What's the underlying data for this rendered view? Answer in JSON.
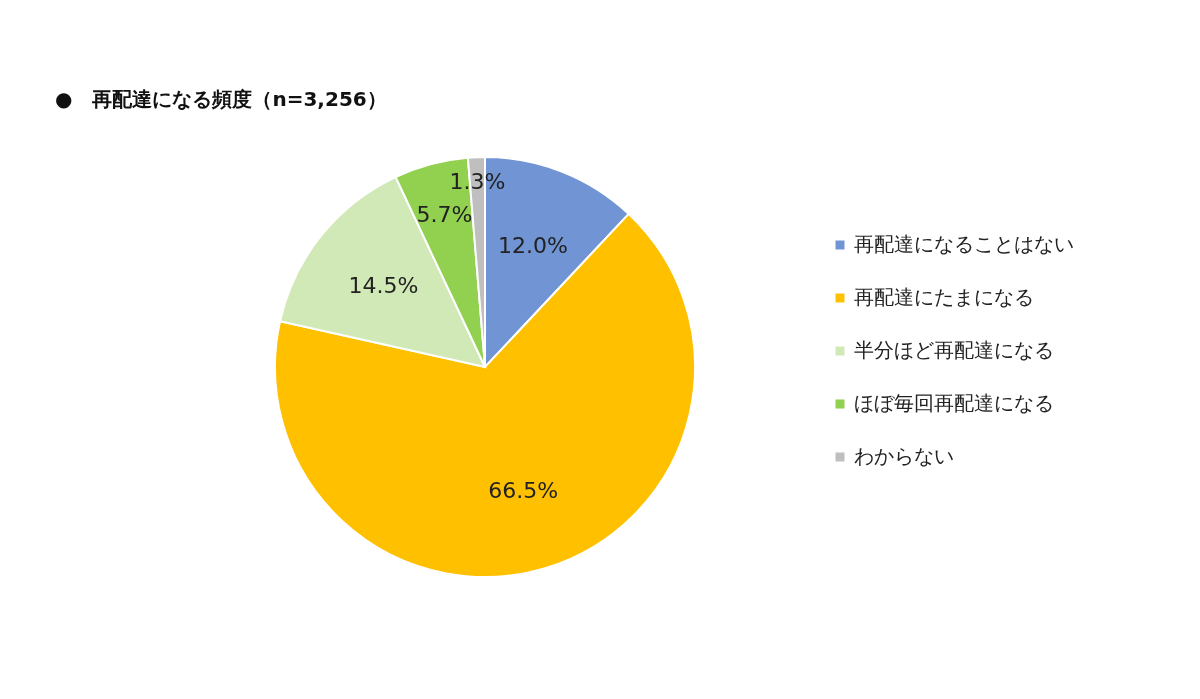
{
  "chart_data": {
    "type": "pie",
    "title": "●　再配達になる頻度（n=3,256）",
    "categories": [
      "再配達になることはない",
      "再配達にたまになる",
      "半分ほど再配達になる",
      "ほぼ毎回再配達になる",
      "わからない"
    ],
    "values": [
      12.0,
      66.5,
      14.5,
      5.7,
      1.3
    ],
    "value_labels": [
      "12.0%",
      "66.5%",
      "14.5%",
      "5.7%",
      "1.3%"
    ],
    "colors": [
      "#7094d4",
      "#ffc000",
      "#d1e9b6",
      "#92d050",
      "#bfbfbf"
    ],
    "legend": "right"
  }
}
